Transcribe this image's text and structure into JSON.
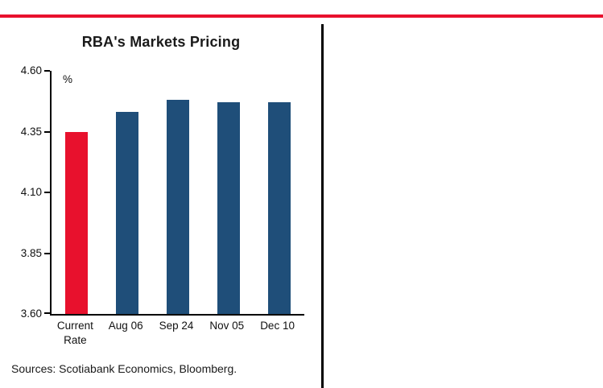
{
  "page": {
    "accent_red": "#E8112D",
    "divider_color": "#000000",
    "background": "#ffffff"
  },
  "chart_data": {
    "type": "bar",
    "title": "RBA's Markets Pricing",
    "unit_label": "%",
    "categories": [
      [
        "Current",
        "Rate"
      ],
      [
        "Aug 06"
      ],
      [
        "Sep 24"
      ],
      [
        "Nov 05"
      ],
      [
        "Dec 10"
      ]
    ],
    "values": [
      4.35,
      4.43,
      4.48,
      4.47,
      4.47
    ],
    "bar_colors": [
      "#E8112D",
      "#1F4E79",
      "#1F4E79",
      "#1F4E79",
      "#1F4E79"
    ],
    "ylim": [
      3.6,
      4.6
    ],
    "yticks": [
      3.6,
      3.85,
      4.1,
      4.35,
      4.6
    ],
    "ytick_labels": [
      "3.60",
      "3.85",
      "4.10",
      "4.35",
      "4.60"
    ],
    "grid": false,
    "legend": "none",
    "source": "Sources: Scotiabank Economics, Bloomberg."
  }
}
